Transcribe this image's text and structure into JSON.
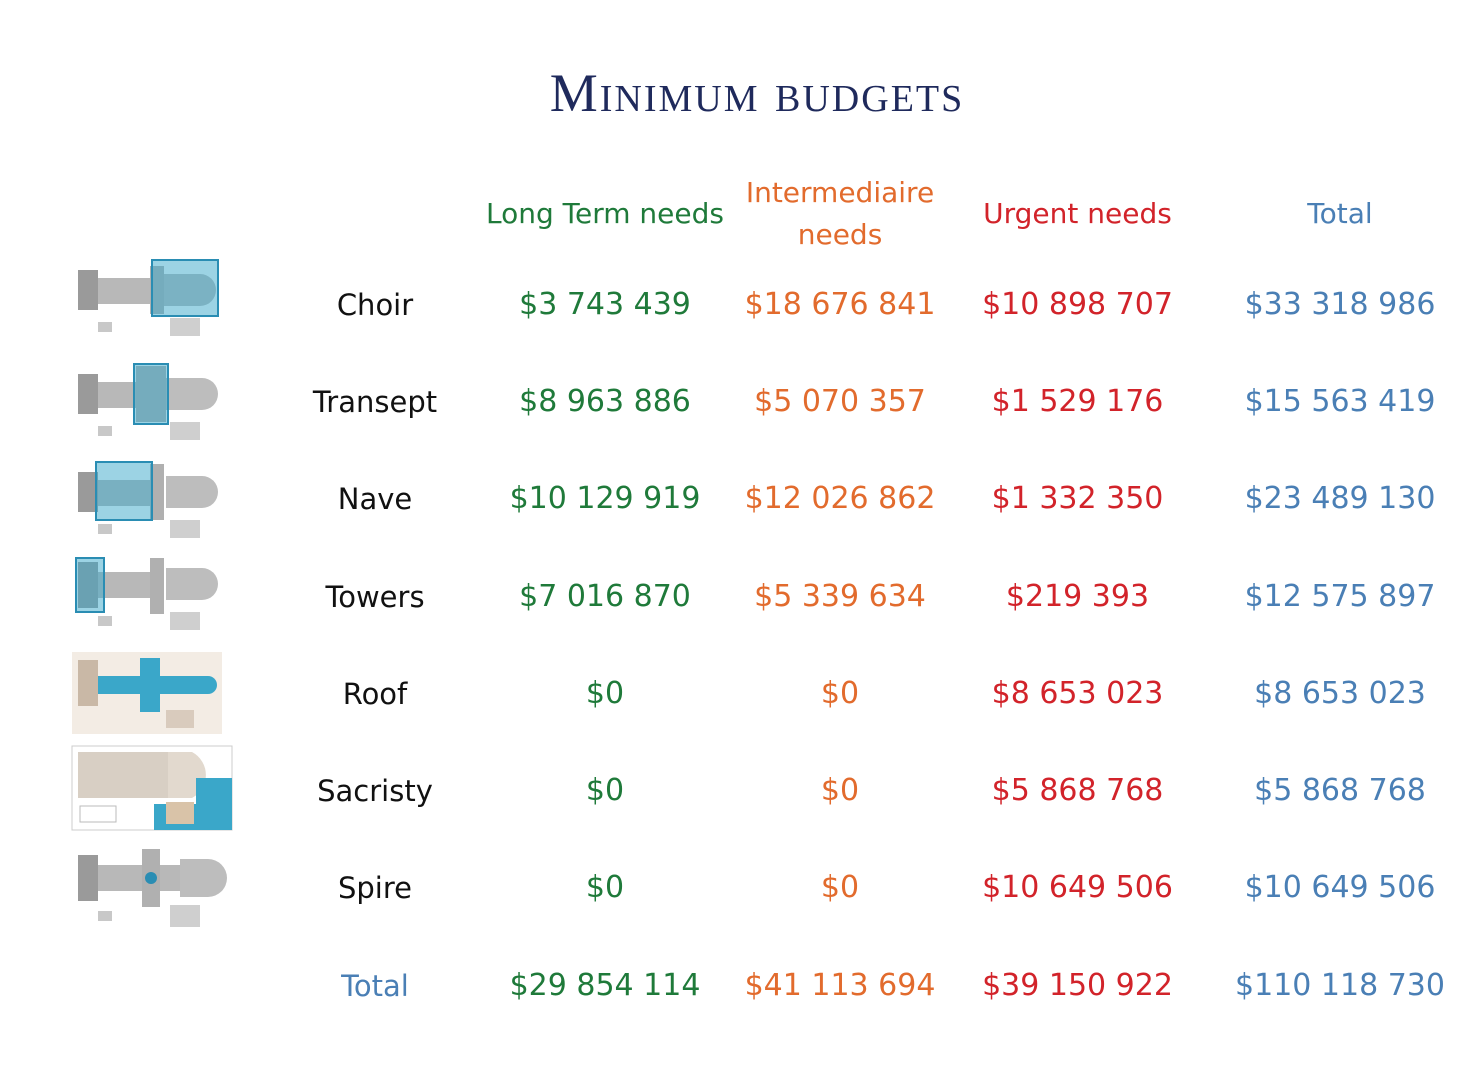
{
  "title": "Minimum budgets",
  "headers": {
    "long_term": "Long Term needs",
    "intermediate_line1": "Intermediaire",
    "intermediate_line2": "needs",
    "urgent": "Urgent needs",
    "total": "Total"
  },
  "colors": {
    "long_term": "#1f7a3a",
    "intermediate": "#e26b2d",
    "urgent": "#d2232a",
    "total": "#4a7fb5",
    "title": "#1f2a5c",
    "highlight": "#3aa7c9"
  },
  "rows": [
    {
      "label": "Choir",
      "long_term": "$3 743 439",
      "intermediate": "$18 676 841",
      "urgent": "$10 898 707",
      "total": "$33 318 986",
      "icon": "cathedral-plan-choir-icon"
    },
    {
      "label": "Transept",
      "long_term": "$8 963 886",
      "intermediate": "$5 070 357",
      "urgent": "$1 529 176",
      "total": "$15 563 419",
      "icon": "cathedral-plan-transept-icon"
    },
    {
      "label": "Nave",
      "long_term": "$10 129 919",
      "intermediate": "$12 026 862",
      "urgent": "$1 332 350",
      "total": "$23 489 130",
      "icon": "cathedral-plan-nave-icon"
    },
    {
      "label": "Towers",
      "long_term": "$7 016 870",
      "intermediate": "$5 339 634",
      "urgent": "$219 393",
      "total": "$12 575 897",
      "icon": "cathedral-plan-towers-icon"
    },
    {
      "label": "Roof",
      "long_term": "$0",
      "intermediate": "$0",
      "urgent": "$8 653 023",
      "total": "$8 653 023",
      "icon": "cathedral-plan-roof-icon"
    },
    {
      "label": "Sacristy",
      "long_term": "$0",
      "intermediate": "$0",
      "urgent": "$5 868 768",
      "total": "$5 868 768",
      "icon": "cathedral-plan-sacristy-icon"
    },
    {
      "label": "Spire",
      "long_term": "$0",
      "intermediate": "$0",
      "urgent": "$10 649 506",
      "total": "$10 649 506",
      "icon": "cathedral-plan-spire-icon"
    }
  ],
  "totals": {
    "label": "Total",
    "long_term": "$29 854 114",
    "intermediate": "$41 113 694",
    "urgent": "$39 150 922",
    "total": "$110 118 730"
  }
}
